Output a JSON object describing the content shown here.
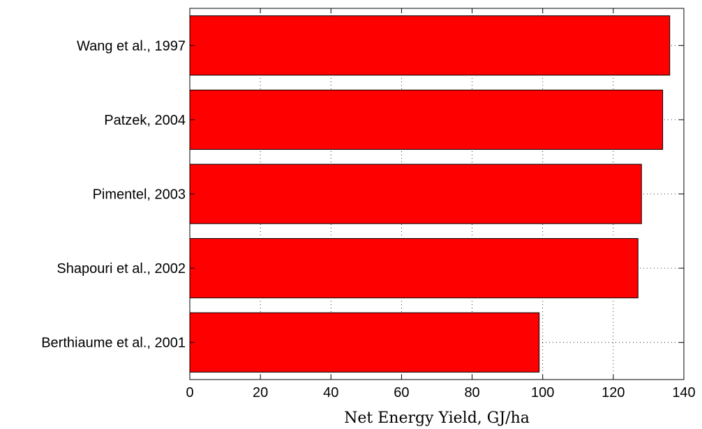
{
  "chart_data": {
    "type": "bar",
    "orientation": "horizontal",
    "categories": [
      "Berthiaume et al., 2001",
      "Shapouri et al., 2002",
      "Pimentel, 2003",
      "Patzek, 2004",
      "Wang et al., 1997"
    ],
    "values": [
      99,
      127,
      128,
      134,
      136
    ],
    "xlabel": "Net Energy Yield, GJ/ha",
    "ylabel": "",
    "title": "",
    "xlim": [
      0,
      140
    ],
    "xticks": [
      "0",
      "20",
      "40",
      "60",
      "80",
      "100",
      "120",
      "140"
    ],
    "grid": true,
    "grid_style": "dotted",
    "bar_color": "#ff0000",
    "bar_edge_color": "#000000"
  }
}
